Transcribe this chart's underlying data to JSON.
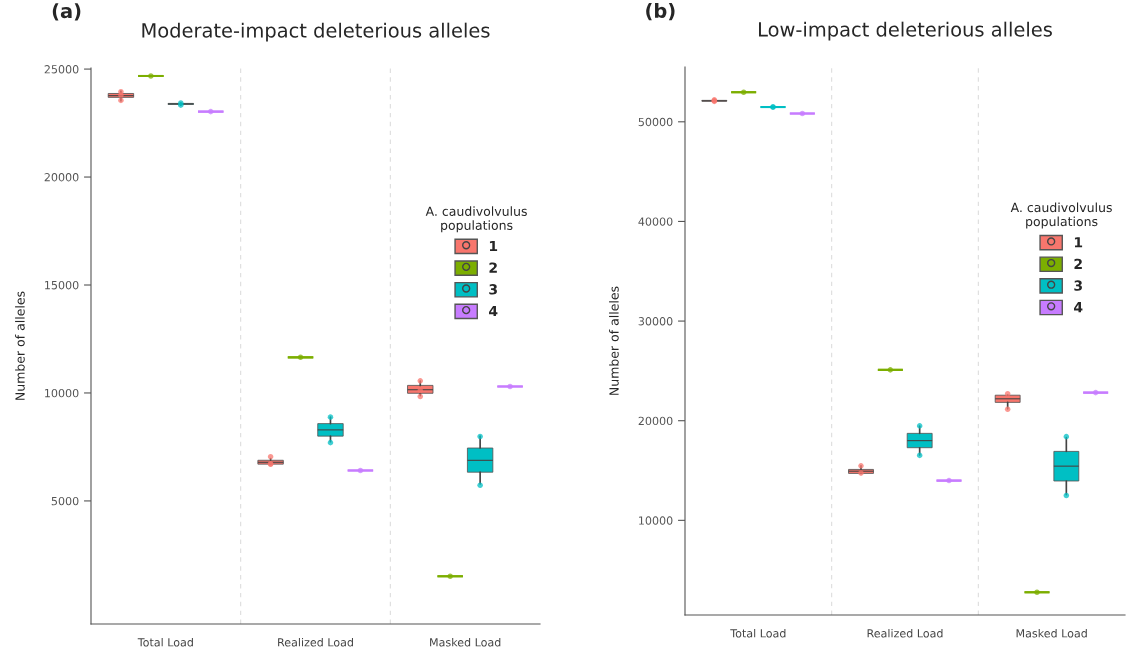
{
  "chart_data": [
    {
      "type": "box",
      "title": "Moderate-impact deleterious alleles",
      "ylabel": "Number of alleles",
      "annotations": [
        "(a)"
      ],
      "legend_title": "A. caudivolvulus populations",
      "legend": "right",
      "grid": "x",
      "categories": [
        "Total Load",
        "Realized Load",
        "Masked Load"
      ],
      "ylim": [
        -700,
        25050
      ],
      "yticks": [
        5000,
        10000,
        15000,
        20000,
        25000
      ],
      "series": [
        {
          "name": "1",
          "color": "#f8766d",
          "boxes": [
            {
              "low": 23520,
              "q1": 23690,
              "median": 23770,
              "q3": 23870,
              "high": 23985,
              "outliers": [
                23950,
                23550,
                23800
              ]
            },
            {
              "low": 6703,
              "q1": 6703,
              "median": 6790,
              "q3": 6883,
              "high": 6965,
              "outliers": [
                7050,
                6700,
                6720
              ]
            },
            {
              "low": 9880,
              "q1": 9985,
              "median": 10150,
              "q3": 10350,
              "high": 10550,
              "outliers": [
                10560,
                10110,
                9840
              ]
            }
          ]
        },
        {
          "name": "2",
          "color": "#7cae00",
          "boxes": [
            {
              "low": 24680,
              "q1": 24680,
              "median": 24680,
              "q3": 24680,
              "high": 24680,
              "outliers": [
                24680
              ]
            },
            {
              "low": 11650,
              "q1": 11650,
              "median": 11650,
              "q3": 11650,
              "high": 11650,
              "outliers": [
                11650
              ]
            },
            {
              "low": 1510,
              "q1": 1510,
              "median": 1510,
              "q3": 1510,
              "high": 1510,
              "outliers": [
                1510
              ]
            }
          ]
        },
        {
          "name": "3",
          "color": "#00bfc4",
          "boxes": [
            {
              "low": 23330,
              "q1": 23360,
              "median": 23390,
              "q3": 23410,
              "high": 23430,
              "outliers": [
                23330,
                23430
              ]
            },
            {
              "low": 7740,
              "q1": 8000,
              "median": 8290,
              "q3": 8580,
              "high": 8880,
              "outliers": [
                8880,
                7700
              ]
            },
            {
              "low": 5780,
              "q1": 6330,
              "median": 6880,
              "q3": 7450,
              "high": 8000,
              "outliers": [
                7980,
                5730
              ]
            }
          ]
        },
        {
          "name": "4",
          "color": "#c77cff",
          "boxes": [
            {
              "low": 23030,
              "q1": 23030,
              "median": 23030,
              "q3": 23030,
              "high": 23030,
              "outliers": [
                23030
              ]
            },
            {
              "low": 6410,
              "q1": 6410,
              "median": 6410,
              "q3": 6410,
              "high": 6410,
              "outliers": [
                6410
              ]
            },
            {
              "low": 10300,
              "q1": 10300,
              "median": 10300,
              "q3": 10300,
              "high": 10300,
              "outliers": [
                10300
              ]
            }
          ]
        }
      ]
    },
    {
      "type": "box",
      "title": "Low-impact deleterious alleles",
      "ylabel": "Number of alleles",
      "annotations": [
        "(b)"
      ],
      "legend_title": "A. caudivolvulus populations",
      "legend": "right",
      "grid": "x",
      "categories": [
        "Total Load",
        "Realized Load",
        "Masked Load"
      ],
      "ylim": [
        500,
        55500
      ],
      "yticks": [
        10000,
        20000,
        30000,
        40000,
        50000
      ],
      "series": [
        {
          "name": "1",
          "color": "#f8766d",
          "boxes": [
            {
              "low": 52050,
              "q1": 52070,
              "median": 52100,
              "q3": 52150,
              "high": 52200,
              "outliers": [
                52200,
                52120,
                52050
              ]
            },
            {
              "low": 14710,
              "q1": 14710,
              "median": 14935,
              "q3": 15110,
              "high": 15470,
              "outliers": [
                15470,
                14740
              ]
            },
            {
              "low": 21190,
              "q1": 21840,
              "median": 22200,
              "q3": 22560,
              "high": 22560,
              "outliers": [
                22700,
                21150
              ]
            }
          ]
        },
        {
          "name": "2",
          "color": "#7cae00",
          "boxes": [
            {
              "low": 52970,
              "q1": 52970,
              "median": 52970,
              "q3": 52970,
              "high": 52970,
              "outliers": [
                52970
              ]
            },
            {
              "low": 25100,
              "q1": 25100,
              "median": 25100,
              "q3": 25100,
              "high": 25100,
              "outliers": [
                25100
              ]
            },
            {
              "low": 2780,
              "q1": 2780,
              "median": 2780,
              "q3": 2780,
              "high": 2780,
              "outliers": [
                2780
              ]
            }
          ]
        },
        {
          "name": "3",
          "color": "#00bfc4",
          "boxes": [
            {
              "low": 51480,
              "q1": 51480,
              "median": 51480,
              "q3": 51480,
              "high": 51480,
              "outliers": [
                51480,
                51480
              ]
            },
            {
              "low": 16560,
              "q1": 17290,
              "median": 18000,
              "q3": 18730,
              "high": 19450,
              "outliers": [
                19480,
                16520
              ]
            },
            {
              "low": 12570,
              "q1": 13950,
              "median": 15440,
              "q3": 16920,
              "high": 18300,
              "outliers": [
                18400,
                12500
              ]
            }
          ]
        },
        {
          "name": "4",
          "color": "#c77cff",
          "boxes": [
            {
              "low": 50830,
              "q1": 50830,
              "median": 50830,
              "q3": 50830,
              "high": 50830,
              "outliers": [
                50830
              ]
            },
            {
              "low": 13990,
              "q1": 13990,
              "median": 13990,
              "q3": 13990,
              "high": 13990,
              "outliers": [
                13990
              ]
            },
            {
              "low": 22820,
              "q1": 22820,
              "median": 22820,
              "q3": 22820,
              "high": 22820,
              "outliers": [
                22820
              ]
            }
          ]
        }
      ]
    }
  ]
}
